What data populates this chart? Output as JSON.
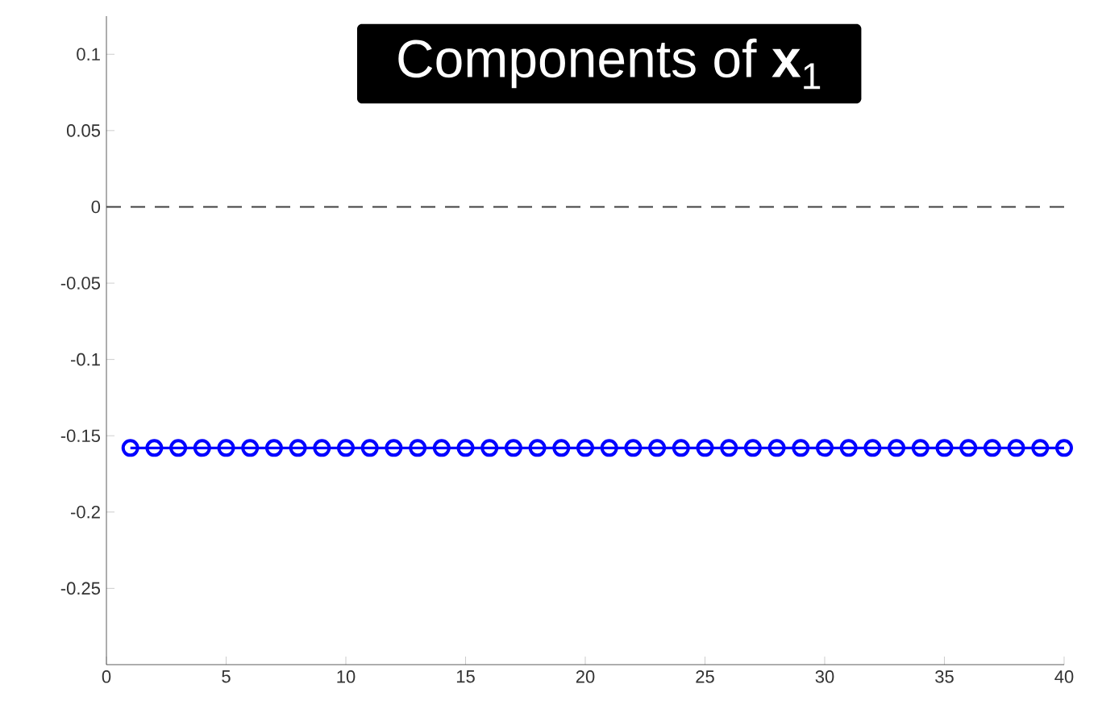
{
  "chart_data": {
    "type": "line",
    "title": "Components of **x**$_{1}$",
    "marker": "circle",
    "line_style": "solid",
    "x": [
      1,
      2,
      3,
      4,
      5,
      6,
      7,
      8,
      9,
      10,
      11,
      12,
      13,
      14,
      15,
      16,
      17,
      18,
      19,
      20,
      21,
      22,
      23,
      24,
      25,
      26,
      27,
      28,
      29,
      30,
      31,
      32,
      33,
      34,
      35,
      36,
      37,
      38,
      39,
      40
    ],
    "series": [
      {
        "color": "#0000ff",
        "values": [
          -0.158,
          -0.158,
          -0.158,
          -0.158,
          -0.158,
          -0.158,
          -0.158,
          -0.158,
          -0.158,
          -0.158,
          -0.158,
          -0.158,
          -0.158,
          -0.158,
          -0.158,
          -0.158,
          -0.158,
          -0.158,
          -0.158,
          -0.158,
          -0.158,
          -0.158,
          -0.158,
          -0.158,
          -0.158,
          -0.158,
          -0.158,
          -0.158,
          -0.158,
          -0.158,
          -0.158,
          -0.158,
          -0.158,
          -0.158,
          -0.158,
          -0.158,
          -0.158,
          -0.158,
          -0.158,
          -0.158
        ]
      }
    ],
    "xlim": [
      0,
      40
    ],
    "xticks": [
      0,
      5,
      10,
      15,
      20,
      25,
      30,
      35,
      40
    ],
    "ylim": [
      -0.3,
      0.125
    ],
    "yticks": [
      -0.25,
      -0.2,
      -0.15,
      -0.1,
      -0.05,
      0,
      0.05,
      0.1
    ],
    "ref_lines": [
      {
        "axis": "y",
        "value": 0,
        "color": "#404040",
        "line_style": "dashed"
      }
    ]
  }
}
